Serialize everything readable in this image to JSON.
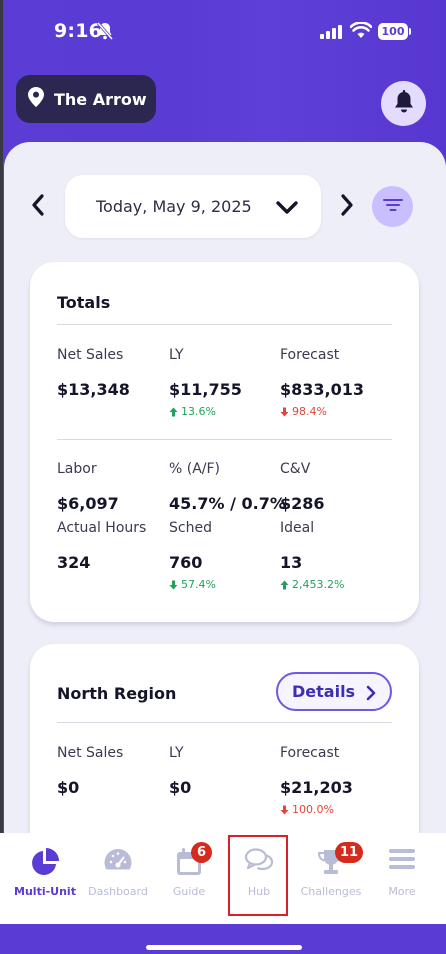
{
  "status_bar": {
    "time": "9:16",
    "battery": "100"
  },
  "header": {
    "location": "The Arrow"
  },
  "date_nav": {
    "date_label": "Today, May 9, 2025"
  },
  "totals": {
    "title": "Totals",
    "row1": {
      "net_sales_label": "Net Sales",
      "net_sales": "$13,348",
      "ly_label": "LY",
      "ly": "$11,755",
      "ly_change": "13.6%",
      "forecast_label": "Forecast",
      "forecast": "$833,013",
      "forecast_change": "98.4%"
    },
    "row2": {
      "labor_label": "Labor",
      "labor": "$6,097",
      "af_label": "% (A/F)",
      "af": "45.7% / 0.7%",
      "cv_label": "C&V",
      "cv": "$286"
    },
    "row3": {
      "actual_hours_label": "Actual Hours",
      "actual_hours": "324",
      "sched_label": "Sched",
      "sched": "760",
      "sched_change": "57.4%",
      "ideal_label": "Ideal",
      "ideal": "13",
      "ideal_change": "2,453.2%"
    }
  },
  "north_region": {
    "title": "North Region",
    "details_label": "Details",
    "net_sales_label": "Net Sales",
    "net_sales": "$0",
    "ly_label": "LY",
    "ly": "$0",
    "forecast_label": "Forecast",
    "forecast": "$21,203",
    "forecast_change": "100.0%"
  },
  "tabs": [
    {
      "label": "Multi-Unit",
      "icon": "pie-chart-icon",
      "active": true
    },
    {
      "label": "Dashboard",
      "icon": "speedometer-icon"
    },
    {
      "label": "Guide",
      "icon": "calendar-icon",
      "badge": "6"
    },
    {
      "label": "Hub",
      "icon": "chat-bubbles-icon"
    },
    {
      "label": "Challenges",
      "icon": "trophy-icon",
      "badge": "11"
    },
    {
      "label": "More",
      "icon": "menu-icon"
    }
  ],
  "colors": {
    "brand": "#5a3bd3",
    "up": "#1fa35a",
    "down": "#e2453c",
    "badge": "#d52b1e"
  }
}
